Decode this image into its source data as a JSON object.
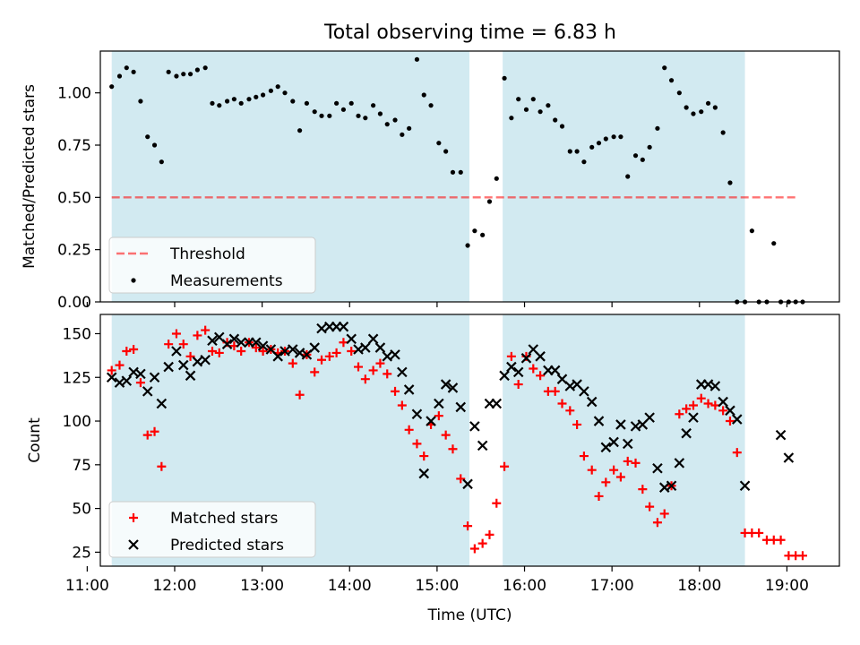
{
  "title": "Total observing time = 6.83 h",
  "colors": {
    "shade": "#add8e6",
    "threshold": "#ff0000",
    "measurement": "#000000",
    "matched": "#ff0000",
    "predicted": "#000000"
  },
  "chart_data": [
    {
      "type": "scatter",
      "name": "ratio-panel",
      "ylabel": "Matched/Predicted stars",
      "xlabel": "",
      "xlim": [
        11.15,
        19.6
      ],
      "ylim": [
        0,
        1.2
      ],
      "yticks": [
        0.0,
        0.25,
        0.5,
        0.75,
        1.0
      ],
      "ytick_labels": [
        "0.00",
        "0.25",
        "0.50",
        "0.75",
        "1.00"
      ],
      "shaded_intervals": [
        [
          11.28,
          15.37
        ],
        [
          15.75,
          18.52
        ]
      ],
      "legend": {
        "position": "lower-left",
        "entries": [
          "Threshold",
          "Measurements"
        ]
      },
      "threshold": {
        "label": "Threshold",
        "value": 0.5,
        "x_range": [
          11.28,
          19.12
        ]
      },
      "series": [
        {
          "name": "Measurements",
          "x": [
            11.28,
            11.37,
            11.45,
            11.53,
            11.61,
            11.69,
            11.77,
            11.85,
            11.93,
            12.02,
            12.1,
            12.18,
            12.26,
            12.35,
            12.43,
            12.51,
            12.6,
            12.68,
            12.76,
            12.85,
            12.93,
            13.01,
            13.1,
            13.18,
            13.26,
            13.35,
            13.43,
            13.51,
            13.6,
            13.68,
            13.77,
            13.85,
            13.93,
            14.02,
            14.1,
            14.18,
            14.27,
            14.35,
            14.43,
            14.52,
            14.6,
            14.68,
            14.77,
            14.85,
            14.93,
            15.02,
            15.1,
            15.18,
            15.27,
            15.35,
            15.43,
            15.52,
            15.6,
            15.68,
            15.77,
            15.85,
            15.93,
            16.02,
            16.1,
            16.18,
            16.27,
            16.35,
            16.43,
            16.52,
            16.6,
            16.68,
            16.77,
            16.85,
            16.93,
            17.02,
            17.1,
            17.18,
            17.27,
            17.35,
            17.43,
            17.52,
            17.6,
            17.68,
            17.77,
            17.85,
            17.93,
            18.02,
            18.1,
            18.18,
            18.27,
            18.35,
            18.43,
            18.52,
            18.6,
            18.68,
            18.77,
            18.85,
            18.93,
            19.02,
            19.1,
            19.18
          ],
          "y": [
            1.03,
            1.08,
            1.12,
            1.1,
            0.96,
            0.79,
            0.75,
            0.67,
            1.1,
            1.08,
            1.09,
            1.09,
            1.11,
            1.12,
            0.95,
            0.94,
            0.96,
            0.97,
            0.95,
            0.97,
            0.98,
            0.99,
            1.01,
            1.03,
            1.0,
            0.96,
            0.82,
            0.95,
            0.91,
            0.89,
            0.89,
            0.95,
            0.92,
            0.95,
            0.89,
            0.88,
            0.94,
            0.9,
            0.85,
            0.87,
            0.8,
            0.83,
            1.16,
            0.99,
            0.94,
            0.76,
            0.72,
            0.62,
            0.62,
            0.27,
            0.34,
            0.32,
            0.48,
            0.59,
            1.07,
            0.88,
            0.97,
            0.92,
            0.97,
            0.91,
            0.94,
            0.87,
            0.84,
            0.72,
            0.72,
            0.67,
            0.74,
            0.76,
            0.78,
            0.79,
            0.79,
            0.6,
            0.7,
            0.68,
            0.74,
            0.83,
            1.12,
            1.06,
            1.0,
            0.93,
            0.9,
            0.91,
            0.95,
            0.93,
            0.81,
            0.57,
            0.0,
            0.0,
            0.34,
            0.0,
            0.0,
            0.28,
            0.0,
            0.0,
            0.0,
            0.0
          ]
        }
      ]
    },
    {
      "type": "scatter",
      "name": "count-panel",
      "ylabel": "Count",
      "xlabel": "Time (UTC)",
      "xlim": [
        11.15,
        19.6
      ],
      "ylim": [
        17,
        161
      ],
      "yticks": [
        25,
        50,
        75,
        100,
        125,
        150
      ],
      "xticks": [
        11,
        12,
        13,
        14,
        15,
        16,
        17,
        18,
        19
      ],
      "xtick_labels": [
        "11:00",
        "12:00",
        "13:00",
        "14:00",
        "15:00",
        "16:00",
        "17:00",
        "18:00",
        "19:00"
      ],
      "shaded_intervals": [
        [
          11.28,
          15.37
        ],
        [
          15.75,
          18.52
        ]
      ],
      "legend": {
        "position": "lower-left",
        "entries": [
          "Matched stars",
          "Predicted stars"
        ]
      },
      "series": [
        {
          "name": "Matched stars",
          "marker": "plus",
          "x": [
            11.28,
            11.37,
            11.45,
            11.53,
            11.61,
            11.69,
            11.77,
            11.85,
            11.93,
            12.02,
            12.1,
            12.18,
            12.26,
            12.35,
            12.43,
            12.51,
            12.6,
            12.68,
            12.76,
            12.85,
            12.93,
            13.01,
            13.1,
            13.18,
            13.26,
            13.35,
            13.43,
            13.51,
            13.6,
            13.68,
            13.77,
            13.85,
            13.93,
            14.02,
            14.1,
            14.18,
            14.27,
            14.35,
            14.43,
            14.52,
            14.6,
            14.68,
            14.77,
            14.85,
            14.93,
            15.02,
            15.1,
            15.18,
            15.27,
            15.35,
            15.43,
            15.52,
            15.6,
            15.68,
            15.77,
            15.85,
            15.93,
            16.02,
            16.1,
            16.18,
            16.27,
            16.35,
            16.43,
            16.52,
            16.6,
            16.68,
            16.77,
            16.85,
            16.93,
            17.02,
            17.1,
            17.18,
            17.27,
            17.35,
            17.43,
            17.52,
            17.6,
            17.68,
            17.77,
            17.85,
            17.93,
            18.02,
            18.1,
            18.18,
            18.27,
            18.35,
            18.43,
            18.52,
            18.6,
            18.68,
            18.77,
            18.85,
            18.93,
            19.02,
            19.1,
            19.18
          ],
          "y": [
            129,
            132,
            140,
            141,
            122,
            92,
            94,
            74,
            144,
            150,
            144,
            137,
            149,
            152,
            140,
            139,
            145,
            143,
            140,
            145,
            142,
            140,
            141,
            139,
            140,
            133,
            115,
            138,
            128,
            135,
            137,
            139,
            145,
            140,
            131,
            124,
            129,
            133,
            127,
            117,
            109,
            95,
            87,
            80,
            98,
            103,
            92,
            84,
            67,
            40,
            27,
            30,
            35,
            53,
            74,
            137,
            121,
            137,
            130,
            126,
            117,
            117,
            110,
            106,
            98,
            80,
            72,
            57,
            65,
            72,
            68,
            77,
            76,
            61,
            51,
            42,
            47,
            63,
            104,
            107,
            109,
            113,
            110,
            109,
            106,
            100,
            82,
            36,
            36,
            36,
            32,
            32,
            32,
            23,
            23,
            23
          ]
        },
        {
          "name": "Predicted stars",
          "marker": "x",
          "x": [
            11.28,
            11.37,
            11.45,
            11.53,
            11.61,
            11.69,
            11.77,
            11.85,
            11.93,
            12.02,
            12.1,
            12.18,
            12.26,
            12.35,
            12.43,
            12.51,
            12.6,
            12.68,
            12.76,
            12.85,
            12.93,
            13.01,
            13.1,
            13.18,
            13.26,
            13.35,
            13.43,
            13.51,
            13.6,
            13.68,
            13.77,
            13.85,
            13.93,
            14.02,
            14.1,
            14.18,
            14.27,
            14.35,
            14.43,
            14.52,
            14.6,
            14.68,
            14.77,
            14.85,
            14.93,
            15.02,
            15.1,
            15.18,
            15.27,
            15.35,
            15.43,
            15.52,
            15.6,
            15.68,
            15.77,
            15.85,
            15.93,
            16.02,
            16.1,
            16.18,
            16.27,
            16.35,
            16.43,
            16.52,
            16.6,
            16.68,
            16.77,
            16.85,
            16.93,
            17.02,
            17.1,
            17.18,
            17.27,
            17.35,
            17.43,
            17.52,
            17.6,
            17.68,
            17.77,
            17.85,
            17.93,
            18.02,
            18.1,
            18.18,
            18.27,
            18.35,
            18.43,
            18.52,
            18.93,
            19.02
          ],
          "y": [
            125,
            122,
            123,
            128,
            127,
            117,
            125,
            110,
            131,
            140,
            132,
            126,
            134,
            135,
            146,
            148,
            144,
            147,
            145,
            145,
            145,
            143,
            141,
            137,
            140,
            141,
            139,
            138,
            142,
            153,
            154,
            154,
            154,
            147,
            141,
            142,
            147,
            142,
            137,
            138,
            128,
            118,
            104,
            70,
            100,
            110,
            121,
            119,
            108,
            64,
            97,
            86,
            110,
            110,
            126,
            131,
            128,
            136,
            141,
            137,
            129,
            129,
            124,
            120,
            121,
            117,
            111,
            100,
            85,
            88,
            98,
            87,
            97,
            98,
            102,
            73,
            62,
            63,
            76,
            93,
            102,
            121,
            121,
            120,
            111,
            106,
            101,
            63,
            92,
            79
          ]
        }
      ]
    }
  ]
}
